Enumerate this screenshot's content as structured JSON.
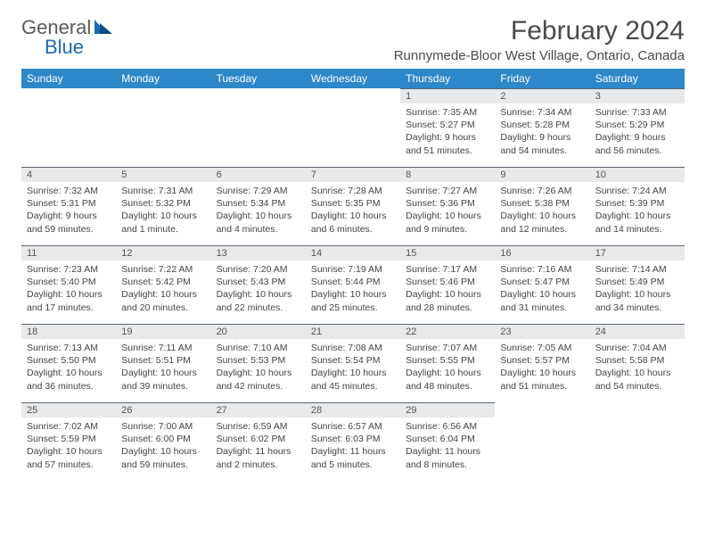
{
  "logo": {
    "text_general": "General",
    "text_blue": "Blue"
  },
  "title": "February 2024",
  "location": "Runnymede-Bloor West Village, Ontario, Canada",
  "colors": {
    "header_bg": "#2d87c8",
    "header_text": "#ffffff",
    "daynum_bg": "#e8e9eb",
    "daynum_border": "#5a6570",
    "body_text": "#444444",
    "logo_blue": "#1b6bb3"
  },
  "day_headers": [
    "Sunday",
    "Monday",
    "Tuesday",
    "Wednesday",
    "Thursday",
    "Friday",
    "Saturday"
  ],
  "weeks": [
    [
      {
        "n": "",
        "sr": "",
        "ss": "",
        "dl": ""
      },
      {
        "n": "",
        "sr": "",
        "ss": "",
        "dl": ""
      },
      {
        "n": "",
        "sr": "",
        "ss": "",
        "dl": ""
      },
      {
        "n": "",
        "sr": "",
        "ss": "",
        "dl": ""
      },
      {
        "n": "1",
        "sr": "Sunrise: 7:35 AM",
        "ss": "Sunset: 5:27 PM",
        "dl": "Daylight: 9 hours and 51 minutes."
      },
      {
        "n": "2",
        "sr": "Sunrise: 7:34 AM",
        "ss": "Sunset: 5:28 PM",
        "dl": "Daylight: 9 hours and 54 minutes."
      },
      {
        "n": "3",
        "sr": "Sunrise: 7:33 AM",
        "ss": "Sunset: 5:29 PM",
        "dl": "Daylight: 9 hours and 56 minutes."
      }
    ],
    [
      {
        "n": "4",
        "sr": "Sunrise: 7:32 AM",
        "ss": "Sunset: 5:31 PM",
        "dl": "Daylight: 9 hours and 59 minutes."
      },
      {
        "n": "5",
        "sr": "Sunrise: 7:31 AM",
        "ss": "Sunset: 5:32 PM",
        "dl": "Daylight: 10 hours and 1 minute."
      },
      {
        "n": "6",
        "sr": "Sunrise: 7:29 AM",
        "ss": "Sunset: 5:34 PM",
        "dl": "Daylight: 10 hours and 4 minutes."
      },
      {
        "n": "7",
        "sr": "Sunrise: 7:28 AM",
        "ss": "Sunset: 5:35 PM",
        "dl": "Daylight: 10 hours and 6 minutes."
      },
      {
        "n": "8",
        "sr": "Sunrise: 7:27 AM",
        "ss": "Sunset: 5:36 PM",
        "dl": "Daylight: 10 hours and 9 minutes."
      },
      {
        "n": "9",
        "sr": "Sunrise: 7:26 AM",
        "ss": "Sunset: 5:38 PM",
        "dl": "Daylight: 10 hours and 12 minutes."
      },
      {
        "n": "10",
        "sr": "Sunrise: 7:24 AM",
        "ss": "Sunset: 5:39 PM",
        "dl": "Daylight: 10 hours and 14 minutes."
      }
    ],
    [
      {
        "n": "11",
        "sr": "Sunrise: 7:23 AM",
        "ss": "Sunset: 5:40 PM",
        "dl": "Daylight: 10 hours and 17 minutes."
      },
      {
        "n": "12",
        "sr": "Sunrise: 7:22 AM",
        "ss": "Sunset: 5:42 PM",
        "dl": "Daylight: 10 hours and 20 minutes."
      },
      {
        "n": "13",
        "sr": "Sunrise: 7:20 AM",
        "ss": "Sunset: 5:43 PM",
        "dl": "Daylight: 10 hours and 22 minutes."
      },
      {
        "n": "14",
        "sr": "Sunrise: 7:19 AM",
        "ss": "Sunset: 5:44 PM",
        "dl": "Daylight: 10 hours and 25 minutes."
      },
      {
        "n": "15",
        "sr": "Sunrise: 7:17 AM",
        "ss": "Sunset: 5:46 PM",
        "dl": "Daylight: 10 hours and 28 minutes."
      },
      {
        "n": "16",
        "sr": "Sunrise: 7:16 AM",
        "ss": "Sunset: 5:47 PM",
        "dl": "Daylight: 10 hours and 31 minutes."
      },
      {
        "n": "17",
        "sr": "Sunrise: 7:14 AM",
        "ss": "Sunset: 5:49 PM",
        "dl": "Daylight: 10 hours and 34 minutes."
      }
    ],
    [
      {
        "n": "18",
        "sr": "Sunrise: 7:13 AM",
        "ss": "Sunset: 5:50 PM",
        "dl": "Daylight: 10 hours and 36 minutes."
      },
      {
        "n": "19",
        "sr": "Sunrise: 7:11 AM",
        "ss": "Sunset: 5:51 PM",
        "dl": "Daylight: 10 hours and 39 minutes."
      },
      {
        "n": "20",
        "sr": "Sunrise: 7:10 AM",
        "ss": "Sunset: 5:53 PM",
        "dl": "Daylight: 10 hours and 42 minutes."
      },
      {
        "n": "21",
        "sr": "Sunrise: 7:08 AM",
        "ss": "Sunset: 5:54 PM",
        "dl": "Daylight: 10 hours and 45 minutes."
      },
      {
        "n": "22",
        "sr": "Sunrise: 7:07 AM",
        "ss": "Sunset: 5:55 PM",
        "dl": "Daylight: 10 hours and 48 minutes."
      },
      {
        "n": "23",
        "sr": "Sunrise: 7:05 AM",
        "ss": "Sunset: 5:57 PM",
        "dl": "Daylight: 10 hours and 51 minutes."
      },
      {
        "n": "24",
        "sr": "Sunrise: 7:04 AM",
        "ss": "Sunset: 5:58 PM",
        "dl": "Daylight: 10 hours and 54 minutes."
      }
    ],
    [
      {
        "n": "25",
        "sr": "Sunrise: 7:02 AM",
        "ss": "Sunset: 5:59 PM",
        "dl": "Daylight: 10 hours and 57 minutes."
      },
      {
        "n": "26",
        "sr": "Sunrise: 7:00 AM",
        "ss": "Sunset: 6:00 PM",
        "dl": "Daylight: 10 hours and 59 minutes."
      },
      {
        "n": "27",
        "sr": "Sunrise: 6:59 AM",
        "ss": "Sunset: 6:02 PM",
        "dl": "Daylight: 11 hours and 2 minutes."
      },
      {
        "n": "28",
        "sr": "Sunrise: 6:57 AM",
        "ss": "Sunset: 6:03 PM",
        "dl": "Daylight: 11 hours and 5 minutes."
      },
      {
        "n": "29",
        "sr": "Sunrise: 6:56 AM",
        "ss": "Sunset: 6:04 PM",
        "dl": "Daylight: 11 hours and 8 minutes."
      },
      {
        "n": "",
        "sr": "",
        "ss": "",
        "dl": ""
      },
      {
        "n": "",
        "sr": "",
        "ss": "",
        "dl": ""
      }
    ]
  ]
}
